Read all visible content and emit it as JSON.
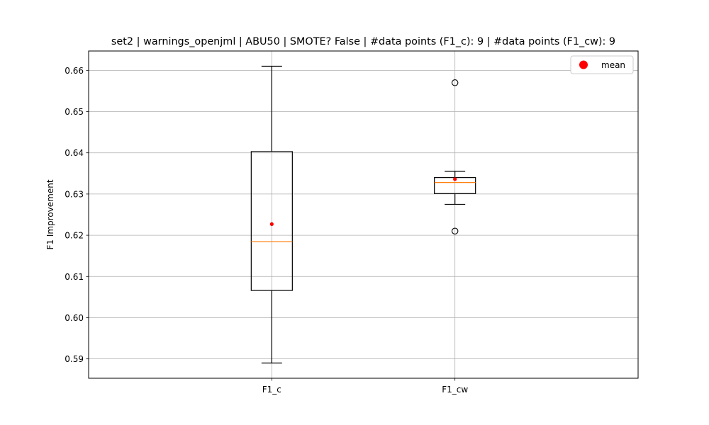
{
  "chart_data": {
    "type": "box",
    "title": "set2 | warnings_openjml | ABU50 | SMOTE? False | #data points (F1_c): 9 | #data points (F1_cw): 9",
    "xlabel": "",
    "ylabel": "F1 Improvement",
    "categories": [
      "F1_c",
      "F1_cw"
    ],
    "ylim": [
      0.5853,
      0.6647
    ],
    "yticks": [
      0.59,
      0.6,
      0.61,
      0.62,
      0.63,
      0.64,
      0.65,
      0.66
    ],
    "ytick_labels": [
      "0.59",
      "0.60",
      "0.61",
      "0.62",
      "0.63",
      "0.64",
      "0.65",
      "0.66"
    ],
    "grid": true,
    "legend": {
      "position": "top-right",
      "entries": [
        {
          "label": "mean",
          "color": "#ff0000",
          "marker": "circle"
        }
      ]
    },
    "boxes": [
      {
        "name": "F1_c",
        "whisker_low": 0.589,
        "q1": 0.6066,
        "median": 0.6184,
        "q3": 0.6403,
        "whisker_high": 0.661,
        "mean": 0.6227,
        "outliers": []
      },
      {
        "name": "F1_cw",
        "whisker_low": 0.6275,
        "q1": 0.6301,
        "median": 0.6328,
        "q3": 0.634,
        "whisker_high": 0.6355,
        "mean": 0.6336,
        "outliers": [
          0.657,
          0.621
        ]
      }
    ],
    "colors": {
      "box": "#000000",
      "median": "#ff7f0e",
      "mean": "#ff0000",
      "grid": "#b0b0b0"
    }
  }
}
